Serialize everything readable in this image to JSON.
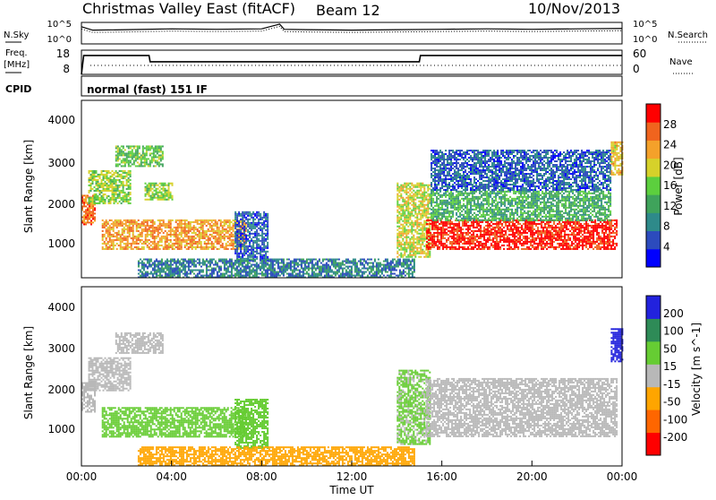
{
  "header": {
    "title": "Christmas Valley East (fitACF)",
    "beam": "Beam 12",
    "date": "10/Nov/2013"
  },
  "noise_panel": {
    "left_label": "N.Sky",
    "left_ticks": [
      "10^5",
      "10^0"
    ],
    "right_ticks": [
      "10^5",
      "10^0"
    ],
    "right_label": "N.Search"
  },
  "freq_panel": {
    "left_label_1": "Freq.",
    "left_label_2": "[MHz]",
    "left_ticks": [
      "18",
      "8"
    ],
    "right_ticks": [
      "60",
      "0"
    ],
    "right_label": "Nave"
  },
  "cpid": {
    "label": "CPID",
    "text": "normal (fast) 151 IF"
  },
  "power_panel": {
    "ylabel": "Slant Range [km]",
    "yticks": [
      "4000",
      "3000",
      "2000",
      "1000"
    ],
    "colorbar_label": "Power [dB]",
    "colorbar_ticks": [
      "28",
      "24",
      "20",
      "16",
      "12",
      "8",
      "4"
    ],
    "colors": [
      "#0000ff",
      "#2c4bbd",
      "#2e8a8a",
      "#3fa35b",
      "#5ccf3e",
      "#d6d12a",
      "#f4a12a",
      "#f0641e",
      "#ff0000"
    ]
  },
  "velocity_panel": {
    "ylabel": "Slant Range [km]",
    "yticks": [
      "4000",
      "3000",
      "2000",
      "1000"
    ],
    "colorbar_label": "Velocity [m s^-1]",
    "colorbar_ticks": [
      "200",
      "100",
      "50",
      "15",
      "-15",
      "-50",
      "-100",
      "-200"
    ],
    "colors": [
      "#2222dd",
      "#2e8b57",
      "#66cc33",
      "#b8b8b8",
      "#ffa500",
      "#ff6600",
      "#ff0000"
    ]
  },
  "xaxis": {
    "ticks": [
      "00:00",
      "04:00",
      "08:00",
      "12:00",
      "16:00",
      "20:00",
      "00:00"
    ],
    "label": "Time UT"
  },
  "chart_data": [
    {
      "type": "line",
      "name": "noise",
      "x_hours": [
        0,
        0.5,
        2,
        4,
        6,
        8,
        8.8,
        9,
        10,
        12,
        14,
        16,
        18,
        20,
        22,
        24
      ],
      "series": [
        {
          "values": [
            4.0,
            3.2,
            3.3,
            3.5,
            3.4,
            3.5,
            4.6,
            3.4,
            3.3,
            3.2,
            3.3,
            3.4,
            3.5,
            3.4,
            3.5,
            3.6
          ]
        }
      ],
      "yticks": [
        "10^0",
        "10^5"
      ],
      "ylim": [
        0,
        5
      ]
    },
    {
      "type": "line",
      "name": "frequency",
      "x_hours": [
        0,
        0.1,
        3,
        3.05,
        15,
        15.05,
        24
      ],
      "series": [
        {
          "values": [
            8,
            15.8,
            15.8,
            13.2,
            13.2,
            15.8,
            15.8
          ]
        }
      ],
      "yticks": [
        "8",
        "18"
      ],
      "ylim": [
        8,
        18
      ]
    },
    {
      "type": "heatmap",
      "name": "power",
      "x_range_hours": [
        0,
        24
      ],
      "y_range_km": [
        180,
        4500
      ],
      "value_unit": "dB",
      "value_range": [
        0,
        30
      ],
      "echo_regions": [
        {
          "t_start": 0.0,
          "t_end": 0.6,
          "r_low": 1500,
          "r_high": 2200,
          "power_db": 24
        },
        {
          "t_start": 0.3,
          "t_end": 2.2,
          "r_low": 2000,
          "r_high": 2800,
          "power_db": 16
        },
        {
          "t_start": 1.5,
          "t_end": 3.6,
          "r_low": 2900,
          "r_high": 3400,
          "power_db": 14
        },
        {
          "t_start": 0.9,
          "t_end": 7.3,
          "r_low": 900,
          "r_high": 1600,
          "power_db": 22
        },
        {
          "t_start": 2.8,
          "t_end": 4.0,
          "r_low": 2100,
          "r_high": 2500,
          "power_db": 16
        },
        {
          "t_start": 6.8,
          "t_end": 8.3,
          "r_low": 600,
          "r_high": 1800,
          "power_db": 6
        },
        {
          "t_start": 2.5,
          "t_end": 14.8,
          "r_low": 200,
          "r_high": 650,
          "power_db": 8
        },
        {
          "t_start": 14.0,
          "t_end": 15.5,
          "r_low": 700,
          "r_high": 2500,
          "power_db": 18
        },
        {
          "t_start": 15.3,
          "t_end": 23.8,
          "r_low": 900,
          "r_high": 1600,
          "power_db": 28
        },
        {
          "t_start": 15.5,
          "t_end": 23.5,
          "r_low": 1600,
          "r_high": 2300,
          "power_db": 12
        },
        {
          "t_start": 15.5,
          "t_end": 23.5,
          "r_low": 2300,
          "r_high": 3300,
          "power_db": 6
        },
        {
          "t_start": 23.5,
          "t_end": 24.0,
          "r_low": 2700,
          "r_high": 3500,
          "power_db": 20
        }
      ]
    },
    {
      "type": "heatmap",
      "name": "velocity",
      "x_range_hours": [
        0,
        24
      ],
      "y_range_km": [
        180,
        4500
      ],
      "value_unit": "m/s",
      "value_range": [
        -200,
        200
      ],
      "echo_regions": [
        {
          "t_start": 0.0,
          "t_end": 0.6,
          "r_low": 1500,
          "r_high": 2200,
          "velocity": 0
        },
        {
          "t_start": 0.3,
          "t_end": 2.2,
          "r_low": 2000,
          "r_high": 2800,
          "velocity": 5
        },
        {
          "t_start": 1.5,
          "t_end": 3.6,
          "r_low": 2900,
          "r_high": 3400,
          "velocity": 0
        },
        {
          "t_start": 0.9,
          "t_end": 7.3,
          "r_low": 900,
          "r_high": 1600,
          "velocity": 60
        },
        {
          "t_start": 6.8,
          "t_end": 8.3,
          "r_low": 600,
          "r_high": 1800,
          "velocity": 40
        },
        {
          "t_start": 2.5,
          "t_end": 14.8,
          "r_low": 200,
          "r_high": 650,
          "velocity": -40
        },
        {
          "t_start": 14.0,
          "t_end": 15.5,
          "r_low": 700,
          "r_high": 2500,
          "velocity": 30
        },
        {
          "t_start": 15.3,
          "t_end": 23.8,
          "r_low": 900,
          "r_high": 2300,
          "velocity": 0
        },
        {
          "t_start": 23.5,
          "t_end": 24.0,
          "r_low": 2700,
          "r_high": 3500,
          "velocity": 200
        }
      ]
    }
  ]
}
